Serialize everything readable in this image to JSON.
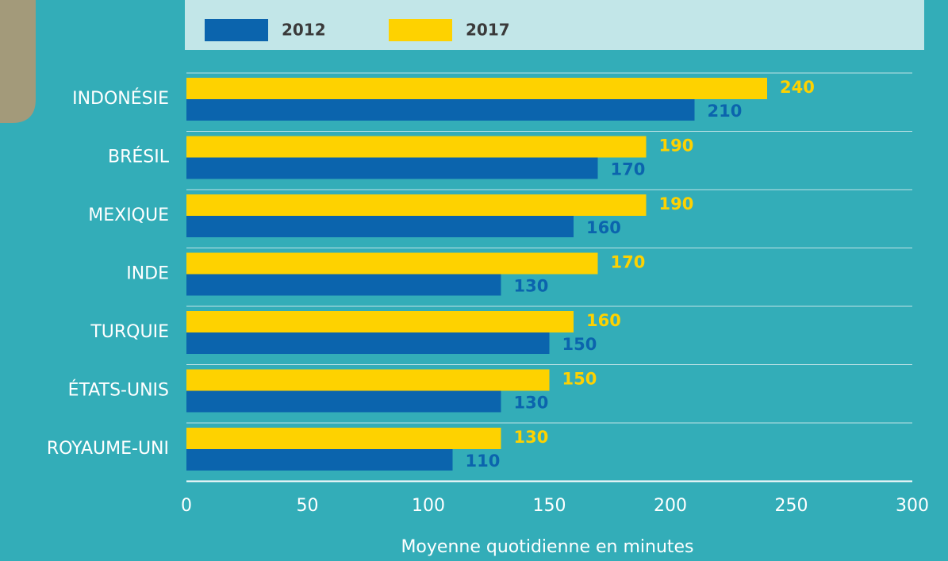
{
  "chart_data": {
    "type": "barh",
    "categories": [
      "INDONÉSIE",
      "BRÉSIL",
      "MEXIQUE",
      "INDE",
      "TURQUIE",
      "ÉTATS-UNIS",
      "ROYAUME-UNI"
    ],
    "series": [
      {
        "name": "2012",
        "color": "#0b64ad",
        "values": [
          210,
          170,
          160,
          130,
          150,
          130,
          110
        ]
      },
      {
        "name": "2017",
        "color": "#fed200",
        "values": [
          240,
          190,
          190,
          170,
          160,
          150,
          130
        ]
      }
    ],
    "xlabel": "Moyenne quotidienne en minutes",
    "xlim": [
      0,
      300
    ],
    "xticks": [
      0,
      50,
      100,
      150,
      200,
      250,
      300
    ],
    "legend": "top"
  }
}
